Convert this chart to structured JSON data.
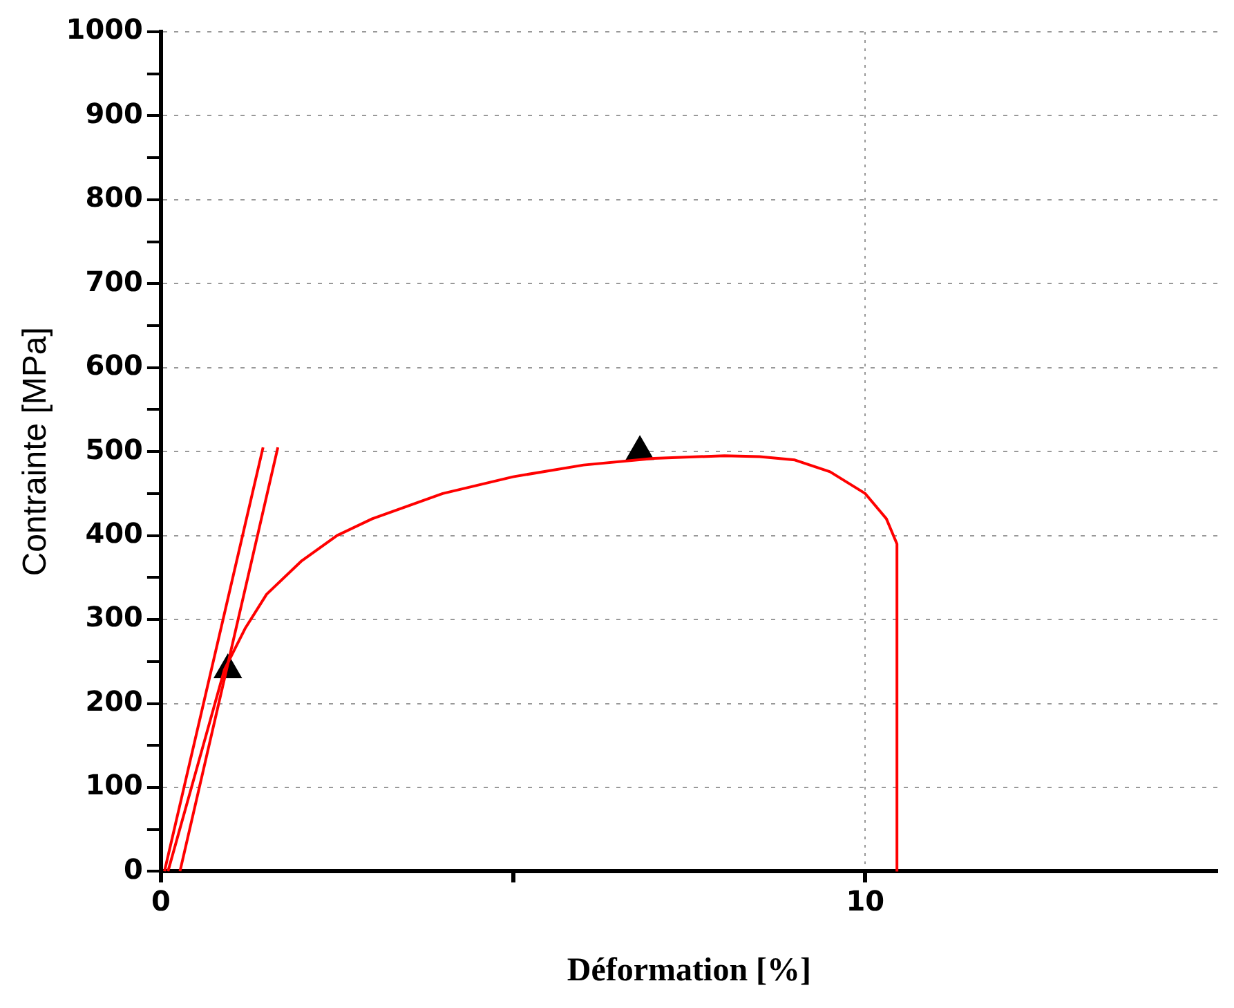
{
  "chart_data": {
    "type": "line",
    "xlabel": "Déformation [%]",
    "ylabel": "Contrainte [MPa]",
    "xlim": [
      0,
      15
    ],
    "xticks": [
      0,
      {
        "value": 5,
        "label": null
      },
      10
    ],
    "ylim": [
      0,
      1000
    ],
    "yticks": [
      0,
      {
        "value": 50,
        "label": null
      },
      100,
      {
        "value": 150,
        "label": null
      },
      200,
      {
        "value": 250,
        "label": null
      },
      300,
      {
        "value": 350,
        "label": null
      },
      400,
      {
        "value": 450,
        "label": null
      },
      500,
      {
        "value": 550,
        "label": null
      },
      600,
      {
        "value": 650,
        "label": null
      },
      700,
      {
        "value": 750,
        "label": null
      },
      800,
      {
        "value": 850,
        "label": null
      },
      900,
      {
        "value": 950,
        "label": null
      },
      1000
    ],
    "grid": true,
    "legend": false,
    "marker": "none",
    "line_style": "solid",
    "series": [
      {
        "color": "#ff0000",
        "x": [
          0.1,
          0.5,
          0.9,
          1.2,
          1.5,
          2,
          2.5,
          3,
          4,
          5,
          6,
          7,
          8,
          8.5,
          9,
          9.5,
          10,
          10.3,
          10.45,
          10.45
        ],
        "values": [
          0,
          120,
          240,
          290,
          330,
          370,
          400,
          420,
          450,
          470,
          484,
          492,
          495,
          494,
          490,
          476,
          450,
          420,
          390,
          0
        ]
      },
      {
        "color": "#ff0000",
        "x": [
          0.05,
          1.45
        ],
        "values": [
          0,
          505
        ]
      },
      {
        "color": "#ff0000",
        "x": [
          0.27,
          1.66
        ],
        "values": [
          0,
          505
        ]
      },
      {
        "type": "scatter",
        "color": "#000000",
        "marker": "triangle",
        "x": [
          0.95,
          6.8
        ],
        "values": [
          240,
          500
        ]
      }
    ]
  }
}
